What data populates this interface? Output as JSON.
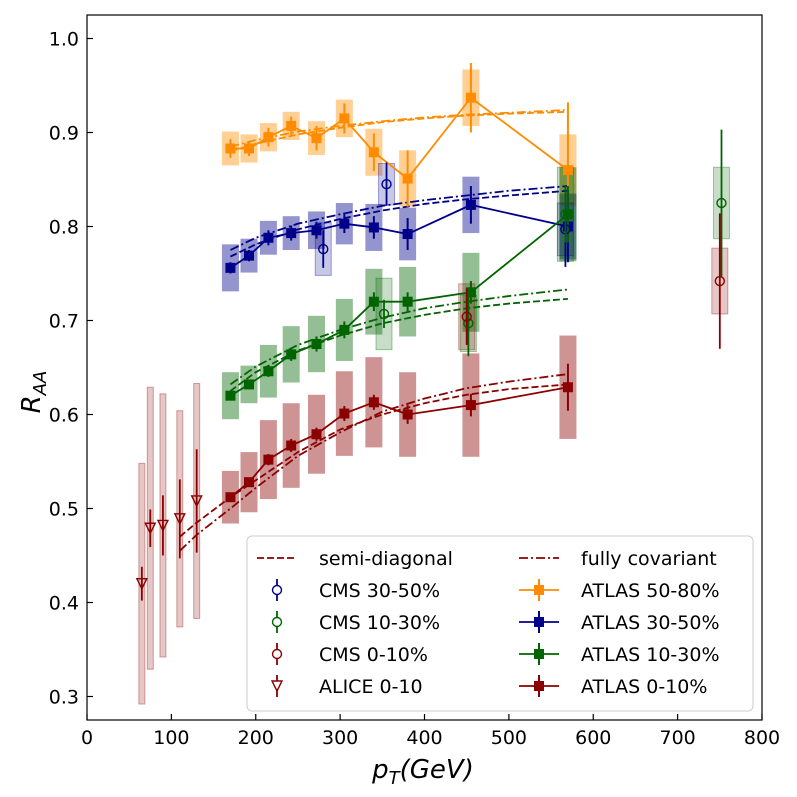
{
  "chart_data": {
    "type": "scatter",
    "xlabel_main": "p",
    "xlabel_sub": "T",
    "xlabel_unit": "(GeV)",
    "ylabel_main": "R",
    "ylabel_sub": "AA",
    "xlim": [
      0,
      800
    ],
    "ylim": [
      0.275,
      1.025
    ],
    "xticks": [
      0,
      100,
      200,
      300,
      400,
      500,
      600,
      700,
      800
    ],
    "yticks": [
      0.3,
      0.4,
      0.5,
      0.6,
      0.7,
      0.8,
      0.9,
      1.0
    ],
    "xtick_labels": [
      "0",
      "100",
      "200",
      "300",
      "400",
      "500",
      "600",
      "700",
      "800"
    ],
    "ytick_labels": [
      "0.3",
      "0.4",
      "0.5",
      "0.6",
      "0.7",
      "0.8",
      "0.9",
      "1.0"
    ],
    "grid": false,
    "legend_position": "lower-right",
    "colors": {
      "ATLAS 50-80%": "#ff8c00",
      "ATLAS 30-50%": "#00008b",
      "ATLAS 10-30%": "#006400",
      "ATLAS 0-10%": "#8b0000",
      "CMS 30-50%": "#00008b",
      "CMS 10-30%": "#006400",
      "CMS 0-10%": "#8b0000",
      "ALICE 0-10": "#8b0000"
    },
    "legend": [
      {
        "label": "semi-diagonal",
        "kind": "dashed",
        "color": "#8b0000"
      },
      {
        "label": "fully covariant",
        "kind": "dashdot",
        "color": "#8b0000"
      },
      {
        "label": "CMS 30-50%",
        "kind": "open-circle",
        "color": "#00008b"
      },
      {
        "label": "ATLAS 50-80%",
        "kind": "filled-square-line",
        "color": "#ff8c00"
      },
      {
        "label": "CMS 10-30%",
        "kind": "open-circle",
        "color": "#006400"
      },
      {
        "label": "ATLAS 30-50%",
        "kind": "filled-square-line",
        "color": "#00008b"
      },
      {
        "label": "CMS 0-10%",
        "kind": "open-circle",
        "color": "#8b0000"
      },
      {
        "label": "ATLAS 10-30%",
        "kind": "filled-square-line",
        "color": "#006400"
      },
      {
        "label": "ALICE 0-10",
        "kind": "open-triangle-down",
        "color": "#8b0000"
      },
      {
        "label": "ATLAS 0-10%",
        "kind": "filled-square-line",
        "color": "#8b0000"
      }
    ],
    "atlas": [
      {
        "name": "ATLAS 50-80%",
        "color": "#ff8c00",
        "x": [
          170,
          192,
          215,
          242,
          272,
          305,
          340,
          380,
          455,
          570
        ],
        "y": [
          0.883,
          0.883,
          0.895,
          0.907,
          0.894,
          0.915,
          0.879,
          0.851,
          0.937,
          0.86
        ],
        "yerr": [
          0.01,
          0.008,
          0.01,
          0.01,
          0.013,
          0.016,
          0.02,
          0.03,
          0.037,
          0.072
        ],
        "syst": [
          0.018,
          0.015,
          0.015,
          0.015,
          0.018,
          0.02,
          0.025,
          0.03,
          0.03,
          0.038
        ]
      },
      {
        "name": "ATLAS 30-50%",
        "color": "#00008b",
        "x": [
          170,
          192,
          215,
          242,
          272,
          305,
          340,
          380,
          455,
          570
        ],
        "y": [
          0.756,
          0.769,
          0.788,
          0.793,
          0.796,
          0.803,
          0.799,
          0.792,
          0.823,
          0.8
        ],
        "yerr": [
          0.006,
          0.006,
          0.008,
          0.008,
          0.009,
          0.01,
          0.012,
          0.017,
          0.02,
          0.038
        ],
        "syst": [
          0.025,
          0.018,
          0.018,
          0.018,
          0.02,
          0.022,
          0.025,
          0.028,
          0.03,
          0.035
        ]
      },
      {
        "name": "ATLAS 10-30%",
        "color": "#006400",
        "x": [
          170,
          192,
          215,
          242,
          272,
          305,
          340,
          380,
          455,
          570
        ],
        "y": [
          0.62,
          0.632,
          0.646,
          0.664,
          0.675,
          0.69,
          0.72,
          0.72,
          0.73,
          0.813
        ],
        "yerr": [
          0.005,
          0.005,
          0.006,
          0.007,
          0.008,
          0.009,
          0.01,
          0.01,
          0.012,
          0.03
        ],
        "syst": [
          0.025,
          0.02,
          0.028,
          0.03,
          0.03,
          0.033,
          0.035,
          0.037,
          0.042,
          0.05
        ]
      },
      {
        "name": "ATLAS 0-10%",
        "color": "#8b0000",
        "x": [
          170,
          192,
          215,
          242,
          272,
          305,
          340,
          380,
          455,
          570
        ],
        "y": [
          0.512,
          0.528,
          0.552,
          0.567,
          0.579,
          0.601,
          0.613,
          0.6,
          0.61,
          0.629
        ],
        "yerr": [
          0.005,
          0.005,
          0.006,
          0.007,
          0.007,
          0.008,
          0.008,
          0.01,
          0.012,
          0.025
        ],
        "syst": [
          0.028,
          0.032,
          0.042,
          0.045,
          0.042,
          0.045,
          0.048,
          0.045,
          0.055,
          0.055
        ]
      }
    ],
    "cms": [
      {
        "name": "CMS 30-50%",
        "color": "#00008b",
        "x": [
          280,
          355,
          567
        ],
        "y": [
          0.776,
          0.845,
          0.797
        ],
        "yerr": [
          0.02,
          0.023,
          0.04
        ],
        "syst": [
          0.028,
          0.022,
          0.028
        ]
      },
      {
        "name": "CMS 10-30%",
        "color": "#006400",
        "x": [
          352,
          452,
          567,
          752
        ],
        "y": [
          0.707,
          0.697,
          0.813,
          0.825
        ],
        "yerr": [
          0.015,
          0.035,
          0.03,
          0.078
        ],
        "syst": [
          0.038,
          0.03,
          0.05,
          0.038
        ]
      },
      {
        "name": "CMS 0-10%",
        "color": "#8b0000",
        "x": [
          450,
          750
        ],
        "y": [
          0.704,
          0.742
        ],
        "yerr": [
          0.03,
          0.072
        ],
        "syst": [
          0.035,
          0.035
        ]
      }
    ],
    "alice": {
      "name": "ALICE 0-10",
      "color": "#8b0000",
      "x": [
        65,
        75,
        90,
        110,
        130
      ],
      "y": [
        0.42,
        0.479,
        0.482,
        0.489,
        0.508
      ],
      "yerr": [
        0.018,
        0.02,
        0.032,
        0.042,
        0.055
      ],
      "syst": [
        0.128,
        0.15,
        0.14,
        0.115,
        0.125
      ]
    },
    "model_curves": [
      {
        "group": "50-80%",
        "color": "#ff8c00",
        "x": [
          170,
          200,
          250,
          300,
          350,
          400,
          450,
          500,
          570
        ],
        "semi_diagonal": [
          0.88,
          0.888,
          0.898,
          0.905,
          0.911,
          0.915,
          0.918,
          0.92,
          0.922
        ],
        "fully_covariant": [
          0.885,
          0.892,
          0.901,
          0.907,
          0.912,
          0.916,
          0.919,
          0.921,
          0.924
        ]
      },
      {
        "group": "30-50%",
        "color": "#00008b",
        "x": [
          170,
          200,
          250,
          300,
          350,
          400,
          450,
          500,
          570
        ],
        "semi_diagonal": [
          0.768,
          0.781,
          0.797,
          0.808,
          0.817,
          0.824,
          0.829,
          0.833,
          0.838
        ],
        "fully_covariant": [
          0.775,
          0.788,
          0.803,
          0.813,
          0.822,
          0.828,
          0.833,
          0.838,
          0.843
        ]
      },
      {
        "group": "10-30%",
        "color": "#006400",
        "x": [
          170,
          200,
          250,
          300,
          350,
          400,
          450,
          500,
          570
        ],
        "semi_diagonal": [
          0.625,
          0.645,
          0.668,
          0.684,
          0.697,
          0.706,
          0.713,
          0.718,
          0.723
        ],
        "fully_covariant": [
          0.632,
          0.651,
          0.674,
          0.69,
          0.703,
          0.713,
          0.72,
          0.726,
          0.733
        ]
      },
      {
        "group": "0-10%",
        "color": "#8b0000",
        "x": [
          110,
          130,
          170,
          200,
          250,
          300,
          350,
          400,
          450,
          500,
          570
        ],
        "semi_diagonal": [
          0.47,
          0.485,
          0.512,
          0.53,
          0.56,
          0.584,
          0.6,
          0.612,
          0.621,
          0.627,
          0.632
        ],
        "fully_covariant": [
          0.455,
          0.472,
          0.5,
          0.522,
          0.556,
          0.581,
          0.603,
          0.617,
          0.628,
          0.635,
          0.643
        ]
      }
    ]
  }
}
